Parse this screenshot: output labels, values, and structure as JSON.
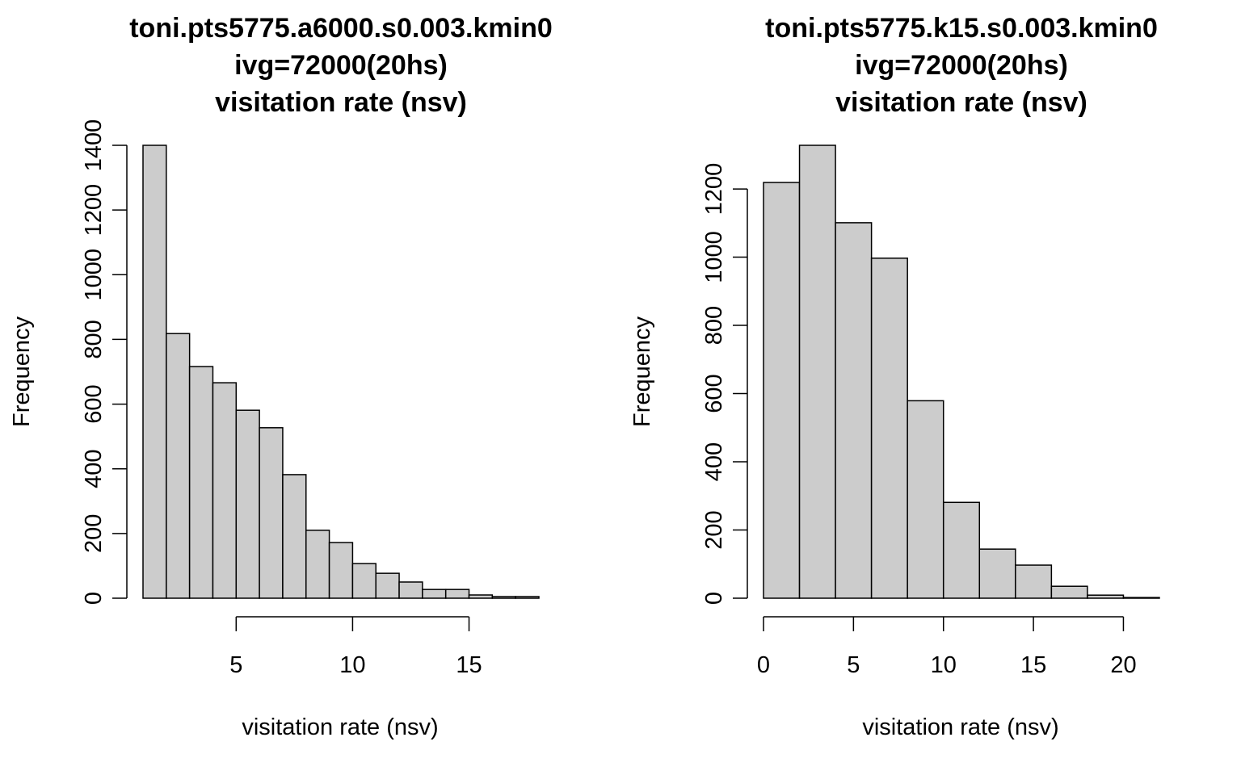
{
  "chart_data": [
    {
      "type": "histogram",
      "title": [
        "toni.pts5775.a6000.s0.003.kmin0",
        "ivg=72000(20hs)",
        "visitation rate (nsv)"
      ],
      "xlabel": "visitation rate (nsv)",
      "ylabel": "Frequency",
      "bins": [
        1,
        2,
        3,
        4,
        5,
        6,
        7,
        8,
        9,
        10,
        11,
        12,
        13,
        14,
        15,
        16,
        17,
        18
      ],
      "values": [
        1400,
        818,
        716,
        666,
        581,
        527,
        382,
        210,
        172,
        107,
        77,
        50,
        27,
        27,
        10,
        5,
        5
      ],
      "color": "#cccccc",
      "xlim": [
        1,
        18
      ],
      "ylim": [
        0,
        1400
      ],
      "xticks": [
        5,
        10,
        15
      ],
      "yticks": [
        0,
        200,
        400,
        600,
        800,
        1000,
        1200,
        1400
      ]
    },
    {
      "type": "histogram",
      "title": [
        "toni.pts5775.k15.s0.003.kmin0",
        "ivg=72000(20hs)",
        "visitation rate (nsv)"
      ],
      "xlabel": "visitation rate (nsv)",
      "ylabel": "Frequency",
      "bins": [
        0,
        2,
        4,
        6,
        8,
        10,
        12,
        14,
        16,
        18,
        20,
        22
      ],
      "values": [
        1219,
        1328,
        1101,
        997,
        579,
        281,
        144,
        97,
        35,
        9,
        2
      ],
      "color": "#cccccc",
      "xlim": [
        0,
        22
      ],
      "ylim": [
        0,
        1328
      ],
      "xticks": [
        0,
        5,
        10,
        15,
        20
      ],
      "yticks": [
        0,
        200,
        400,
        600,
        800,
        1000,
        1200
      ]
    }
  ]
}
